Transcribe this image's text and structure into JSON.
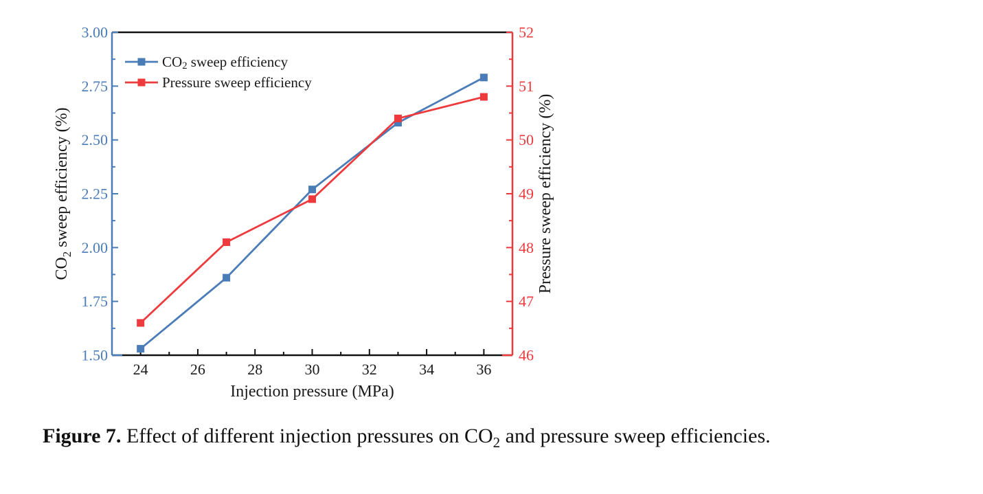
{
  "figure": {
    "caption": {
      "label": "Figure 7.",
      "pre_sub": " Effect of different injection pressures on CO",
      "sub": "2",
      "post_sub": " and pressure sweep efficiencies."
    }
  },
  "chart_data": {
    "type": "line",
    "x": [
      24,
      27,
      30,
      33,
      36
    ],
    "xlabel": "Injection pressure (MPa)",
    "xlim": [
      23,
      37
    ],
    "x_ticks": [
      "24",
      "26",
      "28",
      "30",
      "32",
      "34",
      "36"
    ],
    "x_minor_ticks": [
      25,
      27,
      29,
      31,
      33,
      35
    ],
    "grid": "off",
    "marker": "square",
    "legend_position": "top-left",
    "series": [
      {
        "name": "CO2 sweep efficiency",
        "name_parts": [
          {
            "t": "CO"
          },
          {
            "t": "2",
            "sub": true
          },
          {
            "t": " sweep efficiency"
          }
        ],
        "axis": "left",
        "color": "#4a7cb8",
        "values": [
          1.53,
          1.86,
          2.27,
          2.58,
          2.79
        ]
      },
      {
        "name": "Pressure sweep efficiency",
        "name_parts": [
          {
            "t": "Pressure sweep efficiency"
          }
        ],
        "axis": "right",
        "color": "#ee3a3c",
        "values": [
          46.6,
          48.1,
          48.9,
          50.4,
          50.8
        ]
      }
    ],
    "left_axis": {
      "label": "CO2 sweep efficiency (%)",
      "label_parts": [
        {
          "t": "CO"
        },
        {
          "t": "2",
          "sub": true
        },
        {
          "t": " sweep efficiency (%)"
        }
      ],
      "min": 1.5,
      "max": 3.0,
      "ticks": [
        "1.50",
        "1.75",
        "2.00",
        "2.25",
        "2.50",
        "2.75",
        "3.00"
      ],
      "minor_ticks": [
        1.625,
        1.875,
        2.125,
        2.375,
        2.625,
        2.875
      ],
      "color": "#4a7cb8"
    },
    "right_axis": {
      "label": "Pressure sweep efficiency (%)",
      "min": 46,
      "max": 52,
      "ticks": [
        "46",
        "47",
        "48",
        "49",
        "50",
        "51",
        "52"
      ],
      "minor_ticks": [
        46.5,
        47.5,
        48.5,
        49.5,
        50.5,
        51.5
      ],
      "color": "#ee3a3c"
    },
    "frame_color": "#111111",
    "text_color": "#1a1a1a"
  }
}
